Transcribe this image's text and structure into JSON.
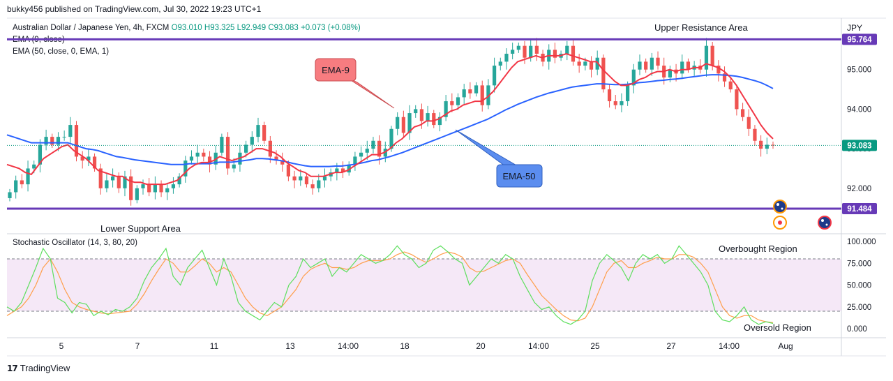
{
  "header": {
    "published": "bukky456 published on TradingView.com, Jul 30, 2022 19:23 UTC+1",
    "symbol": "Australian Dollar / Japanese Yen, 4h, FXCM",
    "ohlc": "O93.010  H93.325  L92.949  C93.083  +0.073 (+0.08%)",
    "ema9_legend": "EMA (9, close)",
    "ema50_legend": "EMA (50, close, 0, EMA, 1)",
    "currency": "JPY"
  },
  "annotations": {
    "upper_area": "Upper Resistance Area",
    "lower_area": "Lower Support Area",
    "overbought": "Overbought Region",
    "oversold": "Oversold Region",
    "ema9_callout": "EMA-9",
    "ema50_callout": "EMA-50"
  },
  "stoch_legend": "Stochastic Oscillator (14, 3, 80, 20)",
  "footer": {
    "brand": "TradingView"
  },
  "colors": {
    "up": "#26a69a",
    "down": "#ef5350",
    "ema9": "#f23645",
    "ema50": "#2962ff",
    "level_line": "#673ab7",
    "price_tag": "#089981",
    "stoch_k": "#5ddf5d",
    "stoch_d": "#ff9e4a",
    "callout_red": "#f77c80",
    "callout_blue": "#5b8def"
  },
  "chart_data": [
    {
      "type": "candlestick",
      "price_axis": [
        "95.000",
        "94.000",
        "93.000",
        "92.000"
      ],
      "time_axis": [
        "5",
        "7",
        "11",
        "13",
        "14:00",
        "18",
        "20",
        "14:00",
        "25",
        "27",
        "14:00",
        "Aug"
      ],
      "ylim": [
        90.85,
        96.3
      ],
      "levels": [
        {
          "name": "Upper Resistance Area",
          "value": 95.764,
          "label": "95.764"
        },
        {
          "name": "Lower Support Area",
          "value": 91.484,
          "label": "91.484"
        }
      ],
      "last_price": {
        "value": 93.083,
        "label": "93.083"
      },
      "candles_close": [
        91.9,
        92.2,
        92.1,
        92.5,
        92.6,
        93.1,
        93.3,
        93.1,
        93.3,
        93.3,
        93.6,
        92.8,
        92.7,
        92.8,
        92.5,
        92.0,
        92.2,
        92.3,
        92.0,
        92.3,
        91.7,
        92.0,
        92.1,
        91.9,
        92.1,
        91.9,
        92.0,
        92.1,
        92.3,
        92.7,
        92.8,
        92.9,
        92.8,
        92.6,
        92.9,
        93.3,
        92.5,
        92.6,
        92.9,
        93.1,
        93.3,
        93.6,
        93.2,
        92.8,
        92.7,
        92.6,
        92.3,
        92.2,
        92.3,
        92.1,
        92.0,
        92.2,
        92.3,
        92.4,
        92.5,
        92.4,
        92.6,
        92.8,
        92.9,
        93.0,
        93.2,
        92.8,
        93.0,
        93.5,
        93.8,
        93.4,
        93.9,
        94.0,
        93.7,
        93.9,
        93.6,
        93.8,
        94.2,
        94.1,
        94.3,
        94.5,
        94.4,
        94.6,
        94.1,
        94.6,
        95.1,
        95.2,
        95.4,
        95.5,
        95.6,
        95.3,
        95.6,
        95.4,
        95.2,
        95.5,
        95.3,
        95.4,
        95.6,
        95.2,
        95.1,
        95.2,
        95.0,
        95.3,
        94.5,
        94.2,
        94.1,
        94.2,
        94.6,
        95.0,
        95.2,
        95.0,
        95.3,
        95.1,
        94.8,
        95.0,
        94.9,
        95.2,
        95.0,
        95.1,
        95.0,
        95.6,
        95.1,
        94.9,
        94.7,
        94.5,
        94.0,
        93.8,
        93.5,
        93.2,
        93.0,
        93.1,
        93.08
      ],
      "ema9": [
        92.6,
        92.55,
        92.5,
        92.4,
        92.35,
        92.55,
        92.75,
        92.85,
        92.95,
        93.05,
        93.1,
        92.95,
        92.85,
        92.75,
        92.6,
        92.45,
        92.4,
        92.35,
        92.3,
        92.3,
        92.2,
        92.15,
        92.15,
        92.1,
        92.1,
        92.1,
        92.1,
        92.15,
        92.2,
        92.35,
        92.5,
        92.6,
        92.65,
        92.65,
        92.7,
        92.8,
        92.75,
        92.7,
        92.75,
        92.8,
        92.9,
        93.0,
        93.0,
        92.95,
        92.9,
        92.8,
        92.65,
        92.55,
        92.45,
        92.4,
        92.3,
        92.3,
        92.3,
        92.35,
        92.4,
        92.4,
        92.45,
        92.55,
        92.65,
        92.75,
        92.85,
        92.85,
        92.9,
        93.0,
        93.15,
        93.25,
        93.4,
        93.55,
        93.6,
        93.7,
        93.7,
        93.75,
        93.85,
        93.95,
        94.0,
        94.1,
        94.15,
        94.2,
        94.2,
        94.3,
        94.45,
        94.65,
        94.85,
        95.05,
        95.2,
        95.25,
        95.3,
        95.35,
        95.3,
        95.35,
        95.35,
        95.35,
        95.4,
        95.35,
        95.3,
        95.25,
        95.2,
        95.2,
        95.0,
        94.85,
        94.7,
        94.6,
        94.6,
        94.65,
        94.75,
        94.8,
        94.9,
        94.95,
        94.95,
        95.0,
        94.95,
        95.0,
        95.0,
        95.05,
        95.05,
        95.15,
        95.1,
        95.05,
        94.95,
        94.8,
        94.6,
        94.35,
        94.1,
        93.85,
        93.6,
        93.4,
        93.25
      ],
      "ema50": [
        93.35,
        93.3,
        93.25,
        93.2,
        93.15,
        93.15,
        93.15,
        93.15,
        93.15,
        93.15,
        93.15,
        93.1,
        93.05,
        93.0,
        92.98,
        92.95,
        92.9,
        92.85,
        92.8,
        92.78,
        92.75,
        92.72,
        92.7,
        92.68,
        92.66,
        92.64,
        92.62,
        92.6,
        92.6,
        92.6,
        92.62,
        92.62,
        92.62,
        92.62,
        92.64,
        92.66,
        92.66,
        92.66,
        92.68,
        92.7,
        92.72,
        92.75,
        92.75,
        92.74,
        92.72,
        92.7,
        92.67,
        92.63,
        92.6,
        92.57,
        92.55,
        92.55,
        92.55,
        92.55,
        92.56,
        92.56,
        92.58,
        92.6,
        92.63,
        92.66,
        92.7,
        92.72,
        92.76,
        92.8,
        92.85,
        92.9,
        92.96,
        93.02,
        93.08,
        93.14,
        93.2,
        93.26,
        93.32,
        93.38,
        93.44,
        93.5,
        93.56,
        93.62,
        93.68,
        93.74,
        93.82,
        93.9,
        93.98,
        94.05,
        94.12,
        94.18,
        94.24,
        94.3,
        94.35,
        94.4,
        94.44,
        94.48,
        94.52,
        94.56,
        94.58,
        94.6,
        94.62,
        94.64,
        94.64,
        94.63,
        94.62,
        94.62,
        94.63,
        94.65,
        94.67,
        94.68,
        94.7,
        94.72,
        94.73,
        94.75,
        94.76,
        94.78,
        94.8,
        94.82,
        94.84,
        94.86,
        94.87,
        94.87,
        94.86,
        94.85,
        94.83,
        94.8,
        94.76,
        94.72,
        94.67,
        94.6,
        94.52
      ],
      "stoch_axis": [
        "100.000",
        "75.000",
        "50.000",
        "25.000",
        "0.000"
      ],
      "stoch_levels": [
        80,
        20
      ],
      "stoch_k": [
        25,
        20,
        30,
        50,
        70,
        92,
        80,
        35,
        30,
        18,
        30,
        28,
        15,
        20,
        16,
        22,
        20,
        25,
        35,
        55,
        70,
        80,
        92,
        60,
        50,
        70,
        80,
        90,
        70,
        50,
        80,
        60,
        30,
        20,
        15,
        10,
        20,
        30,
        25,
        50,
        60,
        80,
        70,
        75,
        80,
        60,
        70,
        65,
        75,
        85,
        80,
        75,
        78,
        85,
        95,
        85,
        80,
        70,
        75,
        90,
        95,
        88,
        80,
        75,
        50,
        60,
        70,
        80,
        75,
        85,
        80,
        60,
        45,
        30,
        22,
        25,
        15,
        8,
        5,
        10,
        20,
        55,
        75,
        85,
        78,
        70,
        55,
        75,
        85,
        80,
        85,
        75,
        80,
        95,
        85,
        75,
        65,
        50,
        20,
        10,
        8,
        15,
        25,
        10,
        5,
        8,
        6
      ],
      "stoch_d": [
        15,
        20,
        25,
        35,
        50,
        70,
        80,
        65,
        45,
        30,
        25,
        22,
        20,
        18,
        17,
        18,
        19,
        20,
        28,
        40,
        55,
        68,
        80,
        75,
        65,
        65,
        72,
        80,
        75,
        65,
        70,
        65,
        50,
        35,
        25,
        18,
        15,
        20,
        25,
        35,
        45,
        60,
        68,
        72,
        75,
        70,
        70,
        68,
        70,
        75,
        78,
        78,
        78,
        80,
        85,
        88,
        85,
        80,
        76,
        80,
        85,
        88,
        86,
        82,
        70,
        65,
        66,
        70,
        74,
        78,
        80,
        75,
        62,
        50,
        38,
        30,
        22,
        15,
        10,
        9,
        12,
        25,
        45,
        65,
        75,
        78,
        70,
        70,
        75,
        78,
        82,
        80,
        80,
        85,
        85,
        82,
        75,
        65,
        45,
        25,
        15,
        12,
        15,
        15,
        10,
        8,
        7
      ]
    }
  ]
}
